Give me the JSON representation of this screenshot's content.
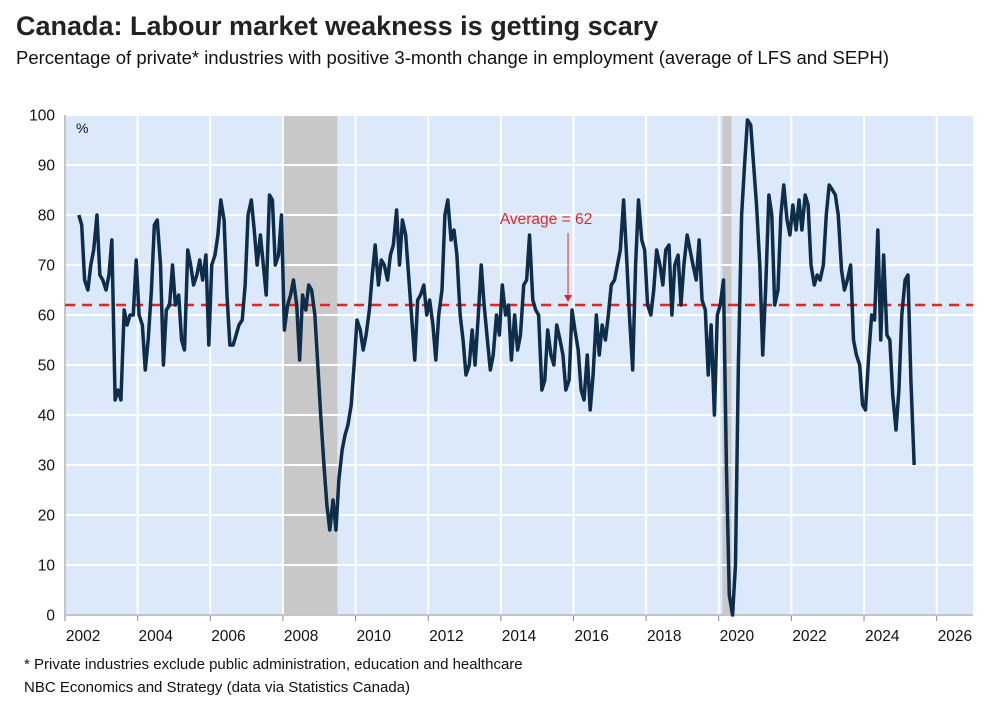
{
  "chart_data": {
    "type": "line",
    "title": "Canada: Labour market weakness is getting scary",
    "subtitle": "Percentage of private* industries with positive 3-month change in employment (average of LFS and SEPH)",
    "y_unit_label": "%",
    "footnotes": [
      "* Private industries exclude public administration, education and healthcare",
      "NBC Economics and Strategy (data via Statistics Canada)"
    ],
    "annotation": "Average = 62",
    "annotation_x": 2015.85,
    "average": 62,
    "average_color": "#e0262b",
    "shaded_periods": [
      [
        2008.0,
        2009.5
      ],
      [
        2020.1,
        2020.35
      ]
    ],
    "grid": true,
    "xlim": [
      2002,
      2027
    ],
    "xticks": [
      2002,
      2004,
      2006,
      2008,
      2010,
      2012,
      2014,
      2016,
      2018,
      2020,
      2022,
      2024,
      2026
    ],
    "ylim": [
      0,
      100
    ],
    "yticks": [
      0,
      10,
      20,
      30,
      40,
      50,
      60,
      70,
      80,
      90,
      100
    ],
    "x": [
      2002.38,
      2002.46,
      2002.54,
      2002.63,
      2002.71,
      2002.79,
      2002.88,
      2002.96,
      2003.04,
      2003.13,
      2003.21,
      2003.29,
      2003.38,
      2003.46,
      2003.54,
      2003.63,
      2003.71,
      2003.79,
      2003.88,
      2003.96,
      2004.04,
      2004.13,
      2004.21,
      2004.29,
      2004.38,
      2004.46,
      2004.54,
      2004.63,
      2004.71,
      2004.79,
      2004.88,
      2004.96,
      2005.04,
      2005.13,
      2005.21,
      2005.29,
      2005.38,
      2005.46,
      2005.54,
      2005.63,
      2005.71,
      2005.79,
      2005.88,
      2005.96,
      2006.04,
      2006.13,
      2006.21,
      2006.29,
      2006.38,
      2006.46,
      2006.54,
      2006.63,
      2006.71,
      2006.79,
      2006.88,
      2006.96,
      2007.04,
      2007.13,
      2007.21,
      2007.29,
      2007.38,
      2007.46,
      2007.54,
      2007.63,
      2007.71,
      2007.79,
      2007.88,
      2007.96,
      2008.04,
      2008.13,
      2008.21,
      2008.29,
      2008.38,
      2008.46,
      2008.54,
      2008.63,
      2008.71,
      2008.79,
      2008.88,
      2008.96,
      2009.04,
      2009.13,
      2009.21,
      2009.29,
      2009.38,
      2009.46,
      2009.54,
      2009.63,
      2009.71,
      2009.79,
      2009.88,
      2009.96,
      2010.04,
      2010.13,
      2010.21,
      2010.29,
      2010.38,
      2010.46,
      2010.54,
      2010.63,
      2010.71,
      2010.79,
      2010.88,
      2010.96,
      2011.04,
      2011.13,
      2011.21,
      2011.29,
      2011.38,
      2011.46,
      2011.54,
      2011.63,
      2011.71,
      2011.79,
      2011.88,
      2011.96,
      2012.04,
      2012.13,
      2012.21,
      2012.29,
      2012.38,
      2012.46,
      2012.54,
      2012.63,
      2012.71,
      2012.79,
      2012.88,
      2012.96,
      2013.04,
      2013.13,
      2013.21,
      2013.29,
      2013.38,
      2013.46,
      2013.54,
      2013.63,
      2013.71,
      2013.79,
      2013.88,
      2013.96,
      2014.04,
      2014.13,
      2014.21,
      2014.29,
      2014.38,
      2014.46,
      2014.54,
      2014.63,
      2014.71,
      2014.79,
      2014.88,
      2014.96,
      2015.04,
      2015.13,
      2015.21,
      2015.29,
      2015.38,
      2015.46,
      2015.54,
      2015.63,
      2015.71,
      2015.79,
      2015.88,
      2015.96,
      2016.04,
      2016.13,
      2016.21,
      2016.29,
      2016.38,
      2016.46,
      2016.54,
      2016.63,
      2016.71,
      2016.79,
      2016.88,
      2016.96,
      2017.04,
      2017.13,
      2017.21,
      2017.29,
      2017.38,
      2017.46,
      2017.54,
      2017.63,
      2017.71,
      2017.79,
      2017.88,
      2017.96,
      2018.04,
      2018.13,
      2018.21,
      2018.29,
      2018.38,
      2018.46,
      2018.54,
      2018.63,
      2018.71,
      2018.79,
      2018.88,
      2018.96,
      2019.04,
      2019.13,
      2019.21,
      2019.29,
      2019.38,
      2019.46,
      2019.54,
      2019.63,
      2019.71,
      2019.79,
      2019.88,
      2019.96,
      2020.04,
      2020.13,
      2020.21,
      2020.29,
      2020.38,
      2020.46,
      2020.54,
      2020.63,
      2020.71,
      2020.79,
      2020.88,
      2020.96,
      2021.04,
      2021.13,
      2021.21,
      2021.29,
      2021.38,
      2021.46,
      2021.54,
      2021.63,
      2021.71,
      2021.79,
      2021.88,
      2021.96,
      2022.04,
      2022.13,
      2022.21,
      2022.29,
      2022.38,
      2022.46,
      2022.54,
      2022.63,
      2022.71,
      2022.79,
      2022.88,
      2022.96,
      2023.04,
      2023.13,
      2023.21,
      2023.29,
      2023.38,
      2023.46,
      2023.54,
      2023.63,
      2023.71,
      2023.79,
      2023.88,
      2023.96,
      2024.04,
      2024.13,
      2024.21,
      2024.29,
      2024.38,
      2024.46,
      2024.54,
      2024.63,
      2024.71,
      2024.79,
      2024.88,
      2024.96,
      2025.04,
      2025.13,
      2025.21,
      2025.29,
      2025.38
    ],
    "series": [
      {
        "name": "Private industries with positive 3-month change",
        "color": "#0d2d4a",
        "values": [
          80,
          78,
          67,
          65,
          70,
          73,
          80,
          68,
          67,
          65,
          68,
          75,
          43,
          45,
          43,
          61,
          58,
          60,
          60,
          71,
          60,
          58,
          49,
          55,
          65,
          78,
          79,
          70,
          50,
          61,
          62,
          70,
          62,
          64,
          55,
          53,
          73,
          70,
          66,
          68,
          71,
          67,
          72,
          54,
          70,
          72,
          76,
          83,
          79,
          64,
          54,
          54,
          56,
          58,
          59,
          66,
          80,
          83,
          77,
          70,
          76,
          70,
          64,
          84,
          83,
          70,
          72,
          80,
          57,
          62,
          64,
          67,
          62,
          51,
          64,
          61,
          66,
          65,
          60,
          50,
          40,
          30,
          22,
          17,
          23,
          17,
          27,
          33,
          36,
          38,
          42,
          50,
          59,
          57,
          53,
          56,
          61,
          68,
          74,
          66,
          71,
          70,
          67,
          72,
          74,
          81,
          70,
          79,
          76,
          68,
          60,
          51,
          63,
          64,
          66,
          60,
          63,
          58,
          51,
          60,
          65,
          80,
          83,
          75,
          77,
          72,
          60,
          55,
          48,
          50,
          57,
          50,
          60,
          70,
          62,
          55,
          49,
          52,
          60,
          56,
          66,
          60,
          62,
          51,
          60,
          53,
          56,
          66,
          67,
          76,
          63,
          61,
          60,
          45,
          47,
          57,
          52,
          50,
          58,
          55,
          52,
          45,
          47,
          61,
          57,
          53,
          45,
          43,
          52,
          41,
          48,
          60,
          52,
          58,
          55,
          60,
          66,
          67,
          70,
          73,
          83,
          72,
          60,
          49,
          70,
          83,
          75,
          73,
          62,
          60,
          65,
          73,
          70,
          66,
          73,
          74,
          60,
          70,
          72,
          62,
          70,
          76,
          73,
          70,
          67,
          75,
          63,
          61,
          48,
          58,
          40,
          60,
          62,
          67,
          30,
          4,
          0,
          10,
          50,
          80,
          90,
          99,
          98,
          90,
          82,
          70,
          52,
          65,
          84,
          80,
          62,
          65,
          80,
          86,
          79,
          76,
          82,
          77,
          83,
          77,
          84,
          82,
          70,
          66,
          68,
          67,
          70,
          80,
          86,
          85,
          84,
          80,
          69,
          65,
          67,
          70,
          55,
          52,
          50,
          42,
          41,
          52,
          60,
          59,
          77,
          55,
          72,
          56,
          55,
          44,
          37,
          45,
          60,
          67,
          68,
          47,
          30
        ]
      }
    ]
  }
}
